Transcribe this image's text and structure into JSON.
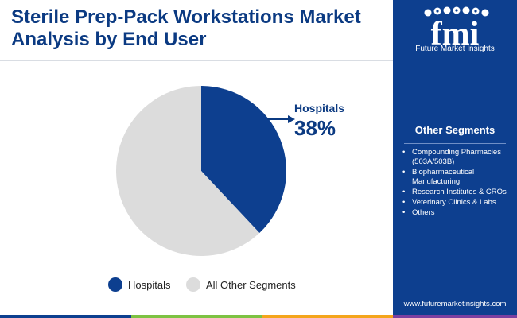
{
  "header": {
    "title": "Sterile Prep-Pack Workstations Market Analysis by End User"
  },
  "brand": {
    "logo_letters": "fmi",
    "name": "Future Market Insights",
    "url": "www.futuremarketinsights.com"
  },
  "sidebar": {
    "heading": "Other Segments",
    "bullet": "•",
    "items": [
      "Compounding Pharmacies (503A/503B)",
      "Biopharmaceutical Manufacturing",
      "Research Institutes & CROs",
      "Veterinary Clinics & Labs",
      "Others"
    ]
  },
  "callout": {
    "label": "Hospitals",
    "value": "38%"
  },
  "legend": {
    "items": [
      {
        "label": "Hospitals",
        "color": "#0d3f8f"
      },
      {
        "label": "All Other Segments",
        "color": "#dcdcdc"
      }
    ]
  },
  "colors": {
    "brand_blue": "#0d3f8f",
    "title_blue": "#0b3a82",
    "other_gray": "#dcdcdc",
    "strip": [
      "#0d3f8f",
      "#7dc242",
      "#f4a51c",
      "#7b3fa0"
    ]
  },
  "chart_data": {
    "type": "pie",
    "title": "Sterile Prep-Pack Workstations Market Analysis by End User",
    "categories": [
      "Hospitals",
      "All Other Segments"
    ],
    "values": [
      38,
      62
    ],
    "unit": "%",
    "colors": [
      "#0d3f8f",
      "#dcdcdc"
    ],
    "start_angle": "12 o'clock, clockwise",
    "legend_position": "bottom"
  }
}
